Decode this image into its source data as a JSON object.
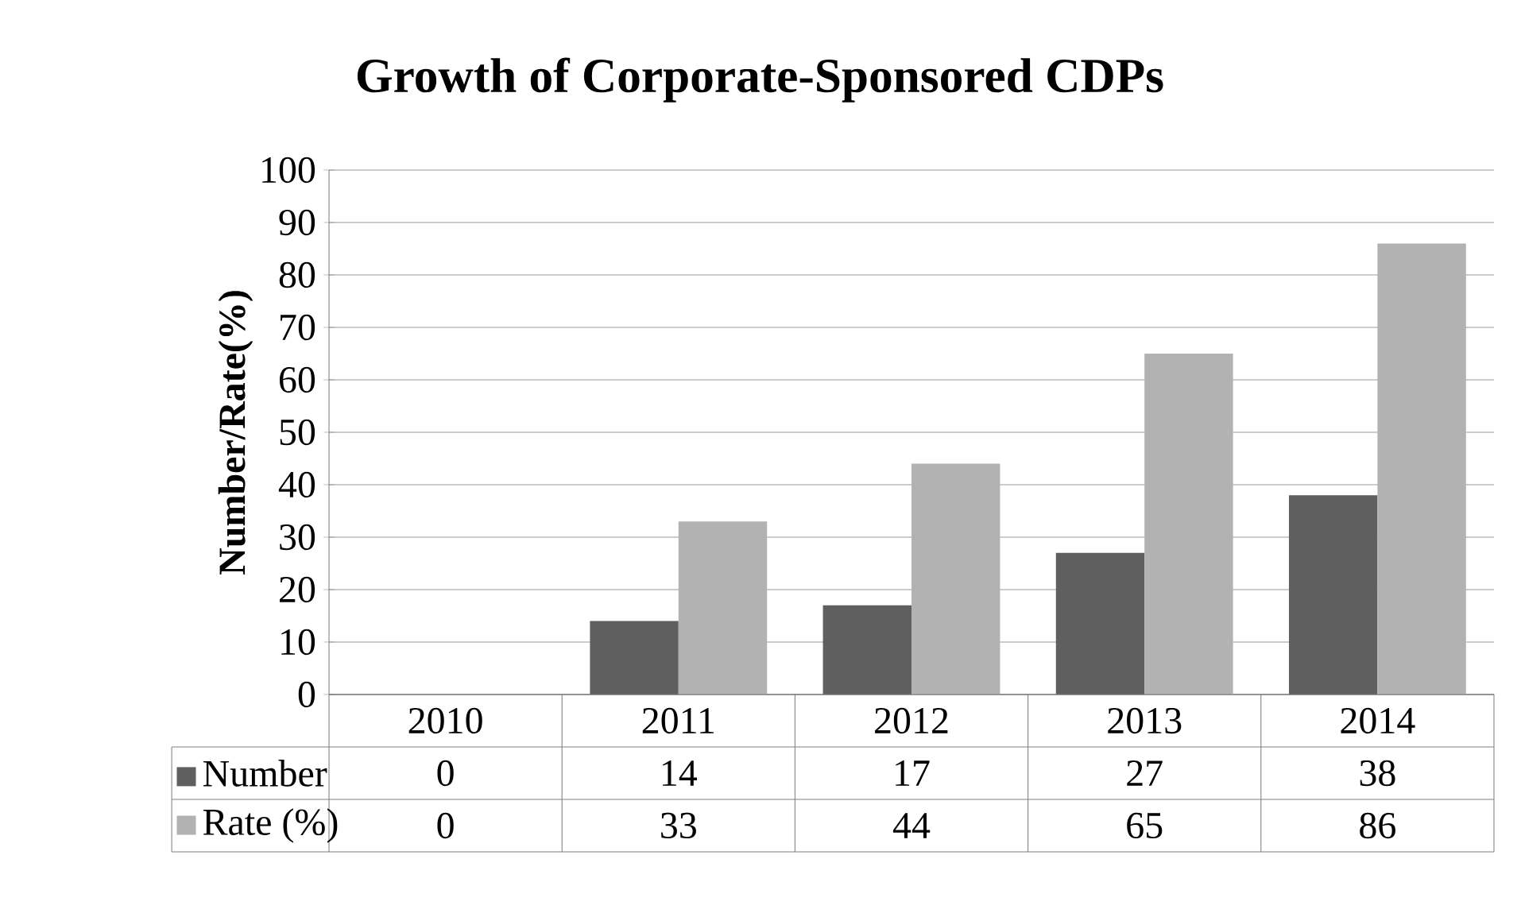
{
  "chart_data": {
    "type": "bar",
    "title": "Growth of Corporate-Sponsored CDPs",
    "ylabel": "Number/Rate(%)",
    "categories": [
      "2010",
      "2011",
      "2012",
      "2013",
      "2014"
    ],
    "series": [
      {
        "name": "Number",
        "color": "#5f5f5f",
        "values": [
          0,
          14,
          17,
          27,
          38
        ]
      },
      {
        "name": "Rate (%)",
        "color": "#b2b2b2",
        "values": [
          0,
          33,
          44,
          65,
          86
        ]
      }
    ],
    "ylim": [
      0,
      100
    ],
    "yticks": [
      0,
      10,
      20,
      30,
      40,
      50,
      60,
      70,
      80,
      90,
      100
    ],
    "grid": "y",
    "legend": "bottom",
    "data_labels": true
  }
}
